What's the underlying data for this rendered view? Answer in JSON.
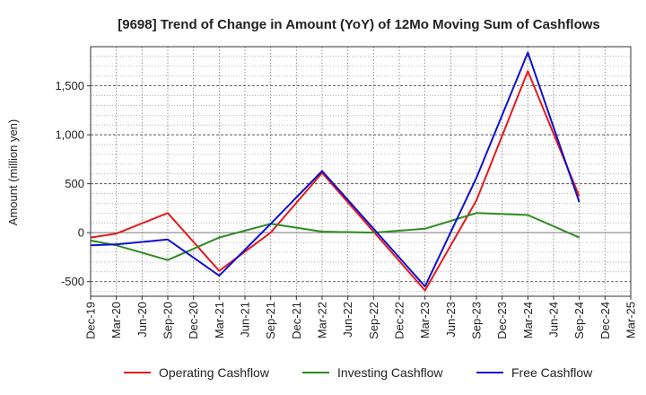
{
  "chart_data": {
    "type": "line",
    "title": "[9698]  Trend of Change in Amount (YoY) of 12Mo Moving Sum of Cashflows",
    "xlabel": "",
    "ylabel": "Amount (million yen)",
    "ylim": [
      -650,
      1900
    ],
    "yticks": [
      -500,
      0,
      500,
      1000,
      1500
    ],
    "ytick_labels": [
      "-500",
      "0",
      "500",
      "1,000",
      "1,500"
    ],
    "categories": [
      "Dec-19",
      "Mar-20",
      "Jun-20",
      "Sep-20",
      "Dec-20",
      "Mar-21",
      "Jun-21",
      "Sep-21",
      "Dec-21",
      "Mar-22",
      "Jun-22",
      "Sep-22",
      "Dec-22",
      "Mar-23",
      "Jun-23",
      "Sep-23",
      "Dec-23",
      "Mar-24",
      "Jun-24",
      "Sep-24",
      "Dec-24",
      "Mar-25"
    ],
    "grid": true,
    "legend_position": "bottom",
    "series": [
      {
        "name": "Operating Cashflow",
        "color": "#e41a1c",
        "values": [
          -50,
          -10,
          null,
          200,
          null,
          -390,
          null,
          0,
          null,
          610,
          null,
          null,
          null,
          -590,
          null,
          330,
          null,
          1650,
          null,
          370,
          null,
          null
        ]
      },
      {
        "name": "Investing Cashflow",
        "color": "#2e8b22",
        "values": [
          -80,
          -130,
          null,
          -280,
          null,
          -50,
          null,
          90,
          null,
          10,
          null,
          0,
          null,
          40,
          null,
          200,
          null,
          180,
          null,
          -50,
          null,
          null
        ]
      },
      {
        "name": "Free Cashflow",
        "color": "#1010cc",
        "values": [
          -130,
          -120,
          null,
          -70,
          null,
          -440,
          null,
          90,
          null,
          630,
          null,
          null,
          null,
          -550,
          null,
          560,
          null,
          1840,
          null,
          310,
          null,
          null
        ]
      }
    ]
  }
}
